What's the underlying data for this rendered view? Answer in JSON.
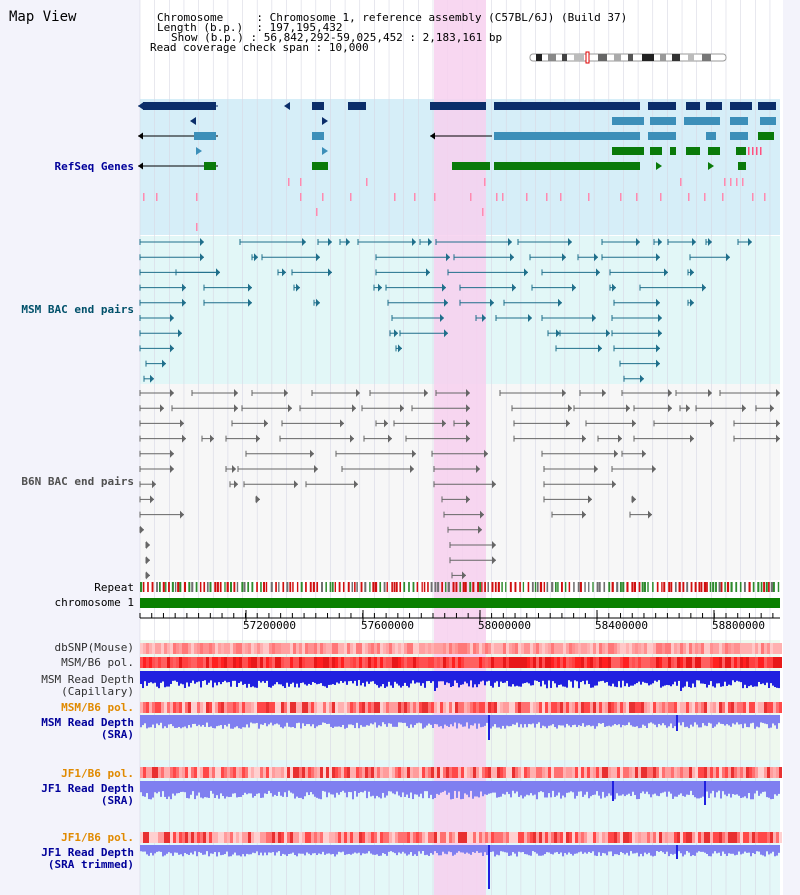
{
  "page_title": "Map View",
  "info": {
    "chromosome_key": "Chromosome",
    "chromosome_value": "Chromosome 1, reference assembly (C57BL/6J) (Build 37)",
    "length_key": "Length (b.p.)",
    "length_value": "197,195,432",
    "show_key": "Show (b.p.)",
    "show_value": "56,842,292-59,025,452 : 2,183,161 bp",
    "coverage_key": "Read coverage check span",
    "coverage_value": "10,000"
  },
  "tracks": {
    "refseq": "RefSeq Genes",
    "msm_bac": "MSM BAC end pairs",
    "b6n_bac": "B6N BAC end pairs",
    "repeat": "Repeat",
    "chromosome": "chromosome 1",
    "dbsnp": "dbSNP(Mouse)",
    "msm_b6_pol_1": "MSM/B6 pol.",
    "msm_depth_cap_1": "MSM Read Depth",
    "msm_depth_cap_2": "(Capillary)",
    "msm_b6_pol_2": "MSM/B6 pol.",
    "msm_depth_sra_1": "MSM Read Depth",
    "msm_depth_sra_2": "(SRA)",
    "jf1_b6_pol_1": "JF1/B6 pol.",
    "jf1_depth_sra_1": "JF1 Read Depth",
    "jf1_depth_sra_2": "(SRA)",
    "jf1_b6_pol_2": "JF1/B6 pol.",
    "jf1_depth_trim_1": "JF1 Read Depth",
    "jf1_depth_trim_2": "(SRA trimmed)"
  },
  "axis_ticks": [
    "57200000",
    "57600000",
    "58000000",
    "58400000",
    "58800000"
  ],
  "colors": {
    "refseq_bg": "#d6eef8",
    "msm_bg": "#e2f7f7",
    "b6n_bg": "#f6f6f6",
    "highlight": "#f7d0ef",
    "refseq_dark": "#0b2e6a",
    "refseq_mid": "#3c8fb9",
    "refseq_green": "#0a7a0a",
    "msm_line": "#1f6f8b",
    "b6n_line": "#666666",
    "chromosome_green": "#0a8000",
    "depth_blue": "#2020e0",
    "depth_light": "#7f7ff0",
    "label_blue": "#00009a",
    "label_teal": "#00506a",
    "label_grey": "#505050",
    "label_orange": "#e08a00"
  }
}
